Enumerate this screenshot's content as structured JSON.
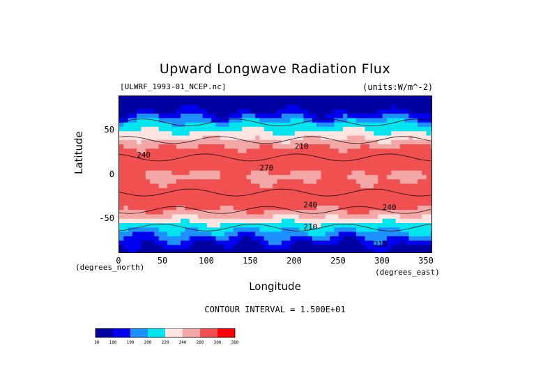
{
  "chart_data": {
    "type": "heatmap",
    "title": "Upward Longwave Radiation Flux",
    "source_file": "[ULWRF_1993-01_NCEP.nc]",
    "units_label": "(units:W/m^-2)",
    "xlabel": "Longitude",
    "ylabel": "Latitude",
    "x_units_left": "(degrees_north)",
    "x_units_right": "(degrees_east)",
    "xlim": [
      0,
      357.5
    ],
    "ylim": [
      -90,
      90
    ],
    "x_ticks": [
      "0",
      "50",
      "100",
      "150",
      "200",
      "250",
      "300",
      "350"
    ],
    "y_ticks": [
      "50",
      "0",
      "-50"
    ],
    "contour_interval_text": "CONTOUR INTERVAL = 1.500E+01",
    "contour_labels": [
      "210",
      "240",
      "270",
      "240",
      "210",
      "240",
      "210"
    ],
    "colorbar": {
      "levels": [
        "160",
        "180",
        "190",
        "200",
        "220",
        "240",
        "260",
        "300",
        "360"
      ],
      "colors": [
        "#0000a0",
        "#0000f0",
        "#1e90ff",
        "#00e5ee",
        "#ffe4e1",
        "#f4a7a7",
        "#f05050",
        "#ff0000"
      ]
    },
    "zonal_profile": [
      {
        "lat": 90,
        "value": 165
      },
      {
        "lat": 75,
        "value": 175
      },
      {
        "lat": 60,
        "value": 200
      },
      {
        "lat": 45,
        "value": 230
      },
      {
        "lat": 30,
        "value": 265
      },
      {
        "lat": 15,
        "value": 285
      },
      {
        "lat": 0,
        "value": 255
      },
      {
        "lat": -15,
        "value": 270
      },
      {
        "lat": -30,
        "value": 280
      },
      {
        "lat": -45,
        "value": 250
      },
      {
        "lat": -60,
        "value": 205
      },
      {
        "lat": -75,
        "value": 185
      },
      {
        "lat": -90,
        "value": 170
      }
    ]
  }
}
